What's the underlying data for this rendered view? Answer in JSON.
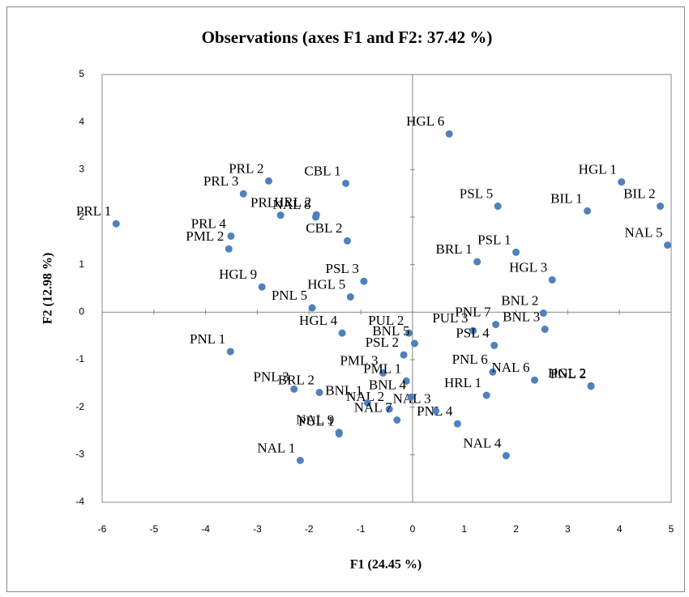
{
  "chart_data": {
    "type": "scatter",
    "title": "Observations (axes F1 and F2: 37.42 %)",
    "x_label": "F1 (24.45 %)",
    "y_label": "F2 (12.98 %)",
    "color": "#4f81bd",
    "point_labels": [
      "PRL 1",
      "PRL 2",
      "PRL 3",
      "PRL",
      "PRL 4",
      "PML 2",
      "HGL 9",
      "PNL 5",
      "HRL 2",
      "NAL 8",
      "CBL 1",
      "CBL 2",
      "PSL 3",
      "HGL 5",
      "HGL 6",
      "HGL 1",
      "BIL 2",
      "BIL 1",
      "NAL 5",
      "PSL 5",
      "PSL 1",
      "BRL 1",
      "HGL 3",
      "BNL 2",
      "BNL 3",
      "PUL 3",
      "PNL 7",
      "PSL 4",
      "PNL 6",
      "NAL 6",
      "HGL 2",
      "PNL 2",
      "HRL 1",
      "PNL 4",
      "NAL 3",
      "NAL 4",
      "PUL 2",
      "BNL 5",
      "PSL 2",
      "HGL 4",
      "PML 3",
      "PML 1",
      "BNL 4",
      "NAL 2",
      "BNL 1",
      "NAL 7",
      "PUL 1",
      "NAL 9",
      "NAL 1",
      "PNL 3",
      "BRL 2",
      "PNL 1"
    ],
    "x": [
      -5.73,
      -2.78,
      -3.27,
      -2.55,
      -3.51,
      -3.55,
      -2.91,
      -1.94,
      -1.86,
      -1.87,
      -1.29,
      -1.26,
      -0.94,
      -1.2,
      0.71,
      4.04,
      4.79,
      3.38,
      4.93,
      1.65,
      2.0,
      1.25,
      2.7,
      2.53,
      2.56,
      1.17,
      1.61,
      1.58,
      1.55,
      2.36,
      3.45,
      3.45,
      1.43,
      0.87,
      0.45,
      1.81,
      -0.07,
      0.04,
      -0.17,
      -1.36,
      -0.57,
      -0.12,
      -0.03,
      -0.45,
      -0.87,
      -0.3,
      -1.42,
      -1.42,
      -2.17,
      -2.29,
      -1.8,
      -3.52
    ],
    "values": [
      1.86,
      2.76,
      2.49,
      2.04,
      1.6,
      1.33,
      0.53,
      0.09,
      2.05,
      2.0,
      2.71,
      1.5,
      0.65,
      0.32,
      3.75,
      2.74,
      2.23,
      2.13,
      1.41,
      2.23,
      1.26,
      1.06,
      0.68,
      -0.02,
      -0.36,
      -0.39,
      -0.26,
      -0.7,
      -1.26,
      -1.43,
      -1.55,
      -1.56,
      -1.75,
      -2.35,
      -2.08,
      -3.02,
      -0.44,
      -0.66,
      -0.9,
      -0.44,
      -1.28,
      -1.45,
      -1.79,
      -2.04,
      -1.91,
      -2.27,
      -2.56,
      -2.53,
      -3.12,
      -1.62,
      -1.69,
      -0.83
    ],
    "xlim": [
      -6,
      5
    ],
    "xticks": [
      -6,
      -5,
      -4,
      -3,
      -2,
      -1,
      0,
      1,
      2,
      3,
      4,
      5
    ],
    "ylim": [
      -4,
      5
    ],
    "yticks": [
      -4,
      -3,
      -2,
      -1,
      0,
      1,
      2,
      3,
      4,
      5
    ]
  }
}
